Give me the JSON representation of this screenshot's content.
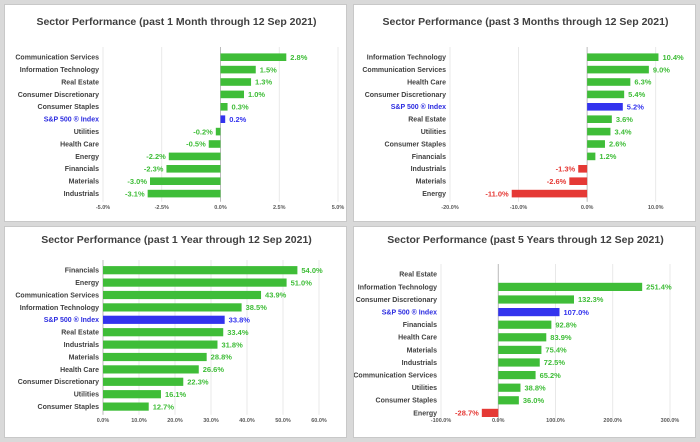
{
  "colors": {
    "positive": "#3fbd38",
    "negative": "#e53935",
    "index": "#3333ee",
    "index_label": "#2b2be0",
    "grid": "#e3e3e3",
    "axis": "#b0b0b0"
  },
  "chart_data": [
    {
      "type": "bar",
      "orientation": "horizontal",
      "title": "Sector Performance (past 1 Month through 12 Sep 2021)",
      "categories": [
        "Communication Services",
        "Information Technology",
        "Real Estate",
        "Consumer Discretionary",
        "Consumer Staples",
        "S&P 500 ® Index",
        "Utilities",
        "Health Care",
        "Energy",
        "Financials",
        "Materials",
        "Industrials"
      ],
      "values": [
        2.8,
        1.5,
        1.3,
        1.0,
        0.3,
        0.2,
        -0.2,
        -0.5,
        -2.2,
        -2.3,
        -3.0,
        -3.1
      ],
      "labels": [
        "2.8%",
        "1.5%",
        "1.3%",
        "1.0%",
        "0.3%",
        "0.2%",
        "-0.2%",
        "-0.5%",
        "-2.2%",
        "-2.3%",
        "-3.0%",
        "-3.1%"
      ],
      "highlight": "S&P 500 ® Index",
      "xlim": [
        -5,
        5
      ],
      "xticks": [
        -5,
        -2.5,
        0,
        2.5,
        5
      ],
      "xtick_labels": [
        "-5.0%",
        "-2.5%",
        "0.0%",
        "2.5%",
        "5.0%"
      ],
      "negative_color": "#3fbd38",
      "grid": true
    },
    {
      "type": "bar",
      "orientation": "horizontal",
      "title": "Sector Performance (past 3 Months through 12 Sep 2021)",
      "categories": [
        "Information Technology",
        "Communication Services",
        "Health Care",
        "Consumer Discretionary",
        "S&P 500 ® Index",
        "Real Estate",
        "Utilities",
        "Consumer Staples",
        "Financials",
        "Industrials",
        "Materials",
        "Energy"
      ],
      "values": [
        10.4,
        9.0,
        6.3,
        5.4,
        5.2,
        3.6,
        3.4,
        2.6,
        1.2,
        -1.3,
        -2.6,
        -11.0
      ],
      "labels": [
        "10.4%",
        "9.0%",
        "6.3%",
        "5.4%",
        "5.2%",
        "3.6%",
        "3.4%",
        "2.6%",
        "1.2%",
        "-1.3%",
        "-2.6%",
        "-11.0%"
      ],
      "highlight": "S&P 500 ® Index",
      "xlim": [
        -20,
        15
      ],
      "xticks": [
        -20,
        -10,
        0,
        10
      ],
      "xtick_labels": [
        "-20.0%",
        "-10.0%",
        "0.0%",
        "10.0%"
      ],
      "negative_color": "#e53935",
      "grid": true
    },
    {
      "type": "bar",
      "orientation": "horizontal",
      "title": "Sector Performance (past 1 Year through 12 Sep 2021)",
      "categories": [
        "Financials",
        "Energy",
        "Communication Services",
        "Information Technology",
        "S&P 500 ® Index",
        "Real Estate",
        "Industrials",
        "Materials",
        "Health Care",
        "Consumer Discretionary",
        "Utilities",
        "Consumer Staples"
      ],
      "values": [
        54.0,
        51.0,
        43.9,
        38.5,
        33.8,
        33.4,
        31.8,
        28.8,
        26.6,
        22.3,
        16.1,
        12.7
      ],
      "labels": [
        "54.0%",
        "51.0%",
        "43.9%",
        "38.5%",
        "33.8%",
        "33.4%",
        "31.8%",
        "28.8%",
        "26.6%",
        "22.3%",
        "16.1%",
        "12.7%"
      ],
      "highlight": "S&P 500 ® Index",
      "xlim": [
        0,
        60
      ],
      "xticks": [
        0,
        10,
        20,
        30,
        40,
        50,
        60
      ],
      "xtick_labels": [
        "0.0%",
        "10.0%",
        "20.0%",
        "30.0%",
        "40.0%",
        "50.0%",
        "60.0%"
      ],
      "negative_color": "#e53935",
      "grid": true
    },
    {
      "type": "bar",
      "orientation": "horizontal",
      "title": "Sector Performance (past 5 Years through 12 Sep 2021)",
      "categories": [
        "Real Estate",
        "Information Technology",
        "Consumer Discretionary",
        "S&P 500 ® Index",
        "Financials",
        "Health Care",
        "Materials",
        "Industrials",
        "Communication Services",
        "Utilities",
        "Consumer Staples",
        "Energy"
      ],
      "values": [
        null,
        251.4,
        132.3,
        107.0,
        92.8,
        83.9,
        75.4,
        72.5,
        65.2,
        38.8,
        36.0,
        -28.7
      ],
      "labels": [
        "",
        "251.4%",
        "132.3%",
        "107.0%",
        "92.8%",
        "83.9%",
        "75.4%",
        "72.5%",
        "65.2%",
        "38.8%",
        "36.0%",
        "-28.7%"
      ],
      "highlight": "S&P 500 ® Index",
      "xlim": [
        -100,
        300
      ],
      "xticks": [
        -100,
        0,
        100,
        200,
        300
      ],
      "xtick_labels": [
        "-100.0%",
        "0.0%",
        "100.0%",
        "200.0%",
        "300.0%"
      ],
      "negative_color": "#e53935",
      "grid": true
    }
  ]
}
